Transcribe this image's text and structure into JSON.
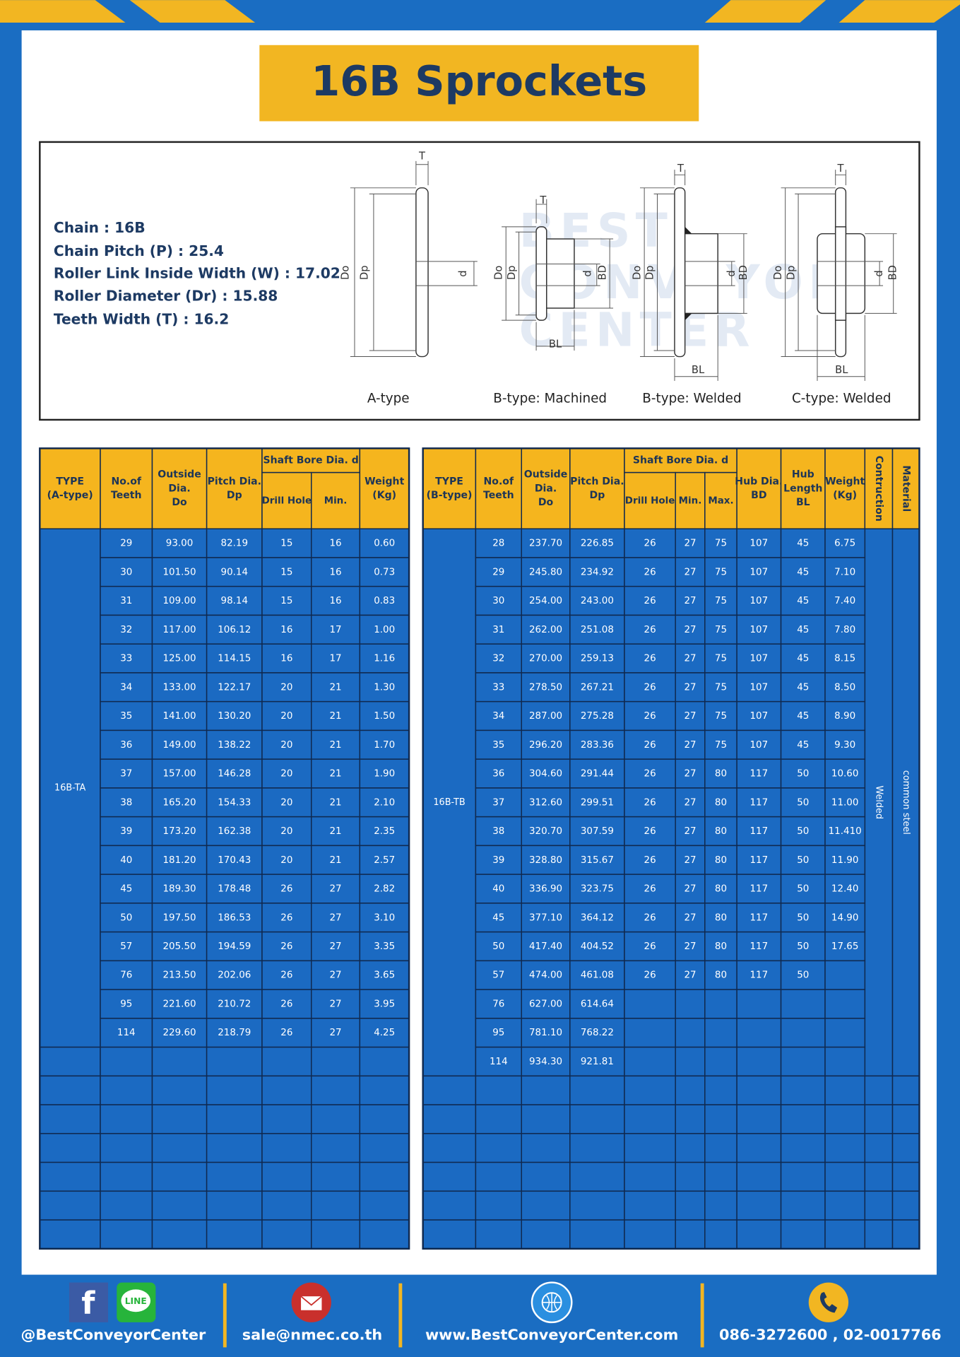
{
  "header": {
    "title": "16B Sprockets"
  },
  "specs": [
    "Chain  :  16B",
    "Chain Pitch (P)  :  25.4",
    "Roller Link Inside Width (W)  :  17.02",
    "Roller Diameter (Dr)  : 15.88",
    "Teeth Width (T)  :  16.2"
  ],
  "diagram": {
    "labels": {
      "T": "T",
      "Do": "Do",
      "Dp": "Dp",
      "d": "d",
      "BD": "BD",
      "BL": "BL"
    },
    "captions": [
      "A-type",
      "B-type: Machined",
      "B-type: Welded",
      "C-type: Welded"
    ],
    "watermark": [
      "BEST",
      "CONVEYOR",
      "CENTER"
    ]
  },
  "table_a": {
    "headers": [
      [
        "TYPE",
        "(A-type)"
      ],
      [
        "No.of",
        "Teeth"
      ],
      [
        "Outside",
        "Dia.",
        "Do"
      ],
      [
        "Pitch Dia.",
        "Dp"
      ],
      [
        "Shaft Bore Dia. d"
      ],
      [
        "Weight",
        "(Kg)"
      ]
    ],
    "subheaders": [
      "Drill Hole",
      "Min."
    ],
    "type": "16B-TA",
    "rows": [
      [
        "29",
        "93.00",
        "82.19",
        "15",
        "16",
        "0.60"
      ],
      [
        "30",
        "101.50",
        "90.14",
        "15",
        "16",
        "0.73"
      ],
      [
        "31",
        "109.00",
        "98.14",
        "15",
        "16",
        "0.83"
      ],
      [
        "32",
        "117.00",
        "106.12",
        "16",
        "17",
        "1.00"
      ],
      [
        "33",
        "125.00",
        "114.15",
        "16",
        "17",
        "1.16"
      ],
      [
        "34",
        "133.00",
        "122.17",
        "20",
        "21",
        "1.30"
      ],
      [
        "35",
        "141.00",
        "130.20",
        "20",
        "21",
        "1.50"
      ],
      [
        "36",
        "149.00",
        "138.22",
        "20",
        "21",
        "1.70"
      ],
      [
        "37",
        "157.00",
        "146.28",
        "20",
        "21",
        "1.90"
      ],
      [
        "38",
        "165.20",
        "154.33",
        "20",
        "21",
        "2.10"
      ],
      [
        "39",
        "173.20",
        "162.38",
        "20",
        "21",
        "2.35"
      ],
      [
        "40",
        "181.20",
        "170.43",
        "20",
        "21",
        "2.57"
      ],
      [
        "45",
        "189.30",
        "178.48",
        "26",
        "27",
        "2.82"
      ],
      [
        "50",
        "197.50",
        "186.53",
        "26",
        "27",
        "3.10"
      ],
      [
        "57",
        "205.50",
        "194.59",
        "26",
        "27",
        "3.35"
      ],
      [
        "76",
        "213.50",
        "202.06",
        "26",
        "27",
        "3.65"
      ],
      [
        "95",
        "221.60",
        "210.72",
        "26",
        "27",
        "3.95"
      ],
      [
        "114",
        "229.60",
        "218.79",
        "26",
        "27",
        "4.25"
      ]
    ]
  },
  "table_b": {
    "headers": [
      [
        "TYPE",
        "(B-type)"
      ],
      [
        "No.of",
        "Teeth"
      ],
      [
        "Outside",
        "Dia.",
        "Do"
      ],
      [
        "Pitch Dia.",
        "Dp"
      ],
      [
        "Shaft Bore Dia. d"
      ],
      [
        "Hub Dia.",
        "BD"
      ],
      [
        "Hub",
        "Length",
        "BL"
      ],
      [
        "Weight",
        "(Kg)"
      ],
      [
        "Contruction"
      ],
      [
        "Material"
      ]
    ],
    "subheaders": [
      "Drill Hole",
      "Min.",
      "Max."
    ],
    "type": "16B-TB",
    "construction": "Welded",
    "material": "common steel",
    "rows": [
      [
        "28",
        "237.70",
        "226.85",
        "26",
        "27",
        "75",
        "107",
        "45",
        "6.75"
      ],
      [
        "29",
        "245.80",
        "234.92",
        "26",
        "27",
        "75",
        "107",
        "45",
        "7.10"
      ],
      [
        "30",
        "254.00",
        "243.00",
        "26",
        "27",
        "75",
        "107",
        "45",
        "7.40"
      ],
      [
        "31",
        "262.00",
        "251.08",
        "26",
        "27",
        "75",
        "107",
        "45",
        "7.80"
      ],
      [
        "32",
        "270.00",
        "259.13",
        "26",
        "27",
        "75",
        "107",
        "45",
        "8.15"
      ],
      [
        "33",
        "278.50",
        "267.21",
        "26",
        "27",
        "75",
        "107",
        "45",
        "8.50"
      ],
      [
        "34",
        "287.00",
        "275.28",
        "26",
        "27",
        "75",
        "107",
        "45",
        "8.90"
      ],
      [
        "35",
        "296.20",
        "283.36",
        "26",
        "27",
        "75",
        "107",
        "45",
        "9.30"
      ],
      [
        "36",
        "304.60",
        "291.44",
        "26",
        "27",
        "80",
        "117",
        "50",
        "10.60"
      ],
      [
        "37",
        "312.60",
        "299.51",
        "26",
        "27",
        "80",
        "117",
        "50",
        "11.00"
      ],
      [
        "38",
        "320.70",
        "307.59",
        "26",
        "27",
        "80",
        "117",
        "50",
        "11.410"
      ],
      [
        "39",
        "328.80",
        "315.67",
        "26",
        "27",
        "80",
        "117",
        "50",
        "11.90"
      ],
      [
        "40",
        "336.90",
        "323.75",
        "26",
        "27",
        "80",
        "117",
        "50",
        "12.40"
      ],
      [
        "45",
        "377.10",
        "364.12",
        "26",
        "27",
        "80",
        "117",
        "50",
        "14.90"
      ],
      [
        "50",
        "417.40",
        "404.52",
        "26",
        "27",
        "80",
        "117",
        "50",
        "17.65"
      ],
      [
        "57",
        "474.00",
        "461.08",
        "26",
        "27",
        "80",
        "117",
        "50",
        null
      ],
      [
        "76",
        "627.00",
        "614.64",
        null,
        null,
        null,
        null,
        null,
        null
      ],
      [
        "95",
        "781.10",
        "768.22",
        null,
        null,
        null,
        null,
        null,
        null
      ],
      [
        "114",
        "934.30",
        "921.81",
        null,
        null,
        null,
        null,
        null,
        null
      ]
    ]
  },
  "footer": {
    "facebook_icon": "f",
    "line_icon": "LINE",
    "social": "@BestConveyorCenter",
    "email": "sale@nmec.co.th",
    "website": "www.BestConveyorCenter.com",
    "phone": "086-3272600 , 02-0017766"
  }
}
